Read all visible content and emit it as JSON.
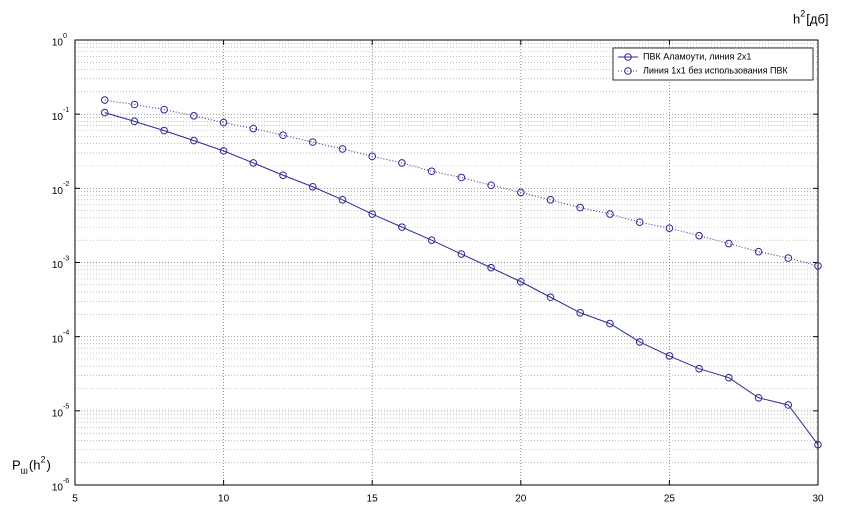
{
  "chart_data": {
    "type": "line",
    "x_label": [
      {
        "text": "h"
      },
      {
        "text": "2",
        "shift": "sup"
      },
      {
        "text": "[дб]"
      }
    ],
    "y_label": [
      {
        "text": "P"
      },
      {
        "text": "ш",
        "shift": "sub"
      },
      {
        "text": "(h"
      },
      {
        "text": "2",
        "shift": "sup"
      },
      {
        "text": ")"
      }
    ],
    "x": [
      6,
      7,
      8,
      9,
      10,
      11,
      12,
      13,
      14,
      15,
      16,
      17,
      18,
      19,
      20,
      21,
      22,
      23,
      24,
      25,
      26,
      27,
      28,
      29,
      30
    ],
    "series": [
      {
        "name": "ПВК Аламоути, линия 2x1",
        "color": "#2a2a96",
        "line_style": "solid",
        "values": [
          0.105,
          0.08,
          0.06,
          0.044,
          0.032,
          0.022,
          0.015,
          0.0105,
          0.007,
          0.0045,
          0.003,
          0.002,
          0.0013,
          0.00085,
          0.00055,
          0.00034,
          0.00021,
          0.00015,
          8.5e-05,
          5.5e-05,
          3.7e-05,
          2.8e-05,
          1.5e-05,
          1.2e-05,
          3.5e-06
        ]
      },
      {
        "name": "Линия 1x1 без использования ПВК",
        "color": "#2a2a96",
        "line_style": "dotted",
        "values": [
          0.155,
          0.135,
          0.115,
          0.095,
          0.077,
          0.064,
          0.052,
          0.042,
          0.034,
          0.027,
          0.022,
          0.017,
          0.014,
          0.011,
          0.0088,
          0.007,
          0.0055,
          0.0045,
          0.0035,
          0.0029,
          0.0023,
          0.0018,
          0.0014,
          0.00115,
          0.0009
        ]
      }
    ],
    "xlim": [
      5,
      30
    ],
    "xticks": [
      5,
      10,
      15,
      20,
      25,
      30
    ],
    "ylim": [
      1e-06,
      1
    ],
    "y_scale": "log",
    "yticks": [
      {
        "value": 1,
        "label": "10",
        "exponent": "0"
      },
      {
        "value": 0.1,
        "label": "10",
        "exponent": "-1"
      },
      {
        "value": 0.01,
        "label": "10",
        "exponent": "-2"
      },
      {
        "value": 0.001,
        "label": "10",
        "exponent": "-3"
      },
      {
        "value": 0.0001,
        "label": "10",
        "exponent": "-4"
      },
      {
        "value": 1e-05,
        "label": "10",
        "exponent": "-5"
      },
      {
        "value": 1e-06,
        "label": "10",
        "exponent": "-6"
      }
    ],
    "grid": true,
    "minor_grid": true,
    "legend": "upper right"
  }
}
